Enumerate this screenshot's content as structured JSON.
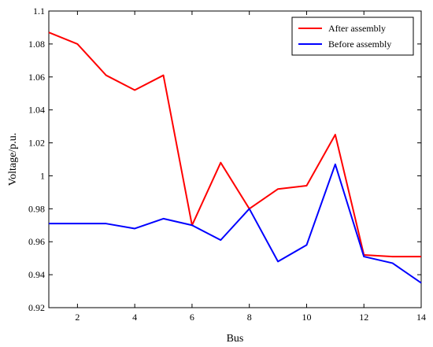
{
  "chart_data": {
    "type": "line",
    "xlabel": "Bus",
    "ylabel": "Voltage/p.u.",
    "xlim": [
      1,
      14
    ],
    "ylim": [
      0.92,
      1.1
    ],
    "xticks": [
      2,
      4,
      6,
      8,
      10,
      12,
      14
    ],
    "yticks": [
      0.92,
      0.94,
      0.96,
      0.98,
      1,
      1.02,
      1.04,
      1.06,
      1.08,
      1.1
    ],
    "grid": false,
    "legend_position": "top-right",
    "x": [
      1,
      2,
      3,
      4,
      5,
      6,
      7,
      8,
      9,
      10,
      11,
      12,
      13,
      14
    ],
    "series": [
      {
        "name": "After assembly",
        "color": "#ff0000",
        "values": [
          1.087,
          1.08,
          1.061,
          1.052,
          1.061,
          0.97,
          1.008,
          0.98,
          0.992,
          0.994,
          1.025,
          0.952,
          0.951,
          0.951
        ]
      },
      {
        "name": "Before assembly",
        "color": "#0000ff",
        "values": [
          0.971,
          0.971,
          0.971,
          0.968,
          0.974,
          0.97,
          0.961,
          0.98,
          0.948,
          0.958,
          1.007,
          0.951,
          0.947,
          0.935
        ]
      }
    ]
  }
}
